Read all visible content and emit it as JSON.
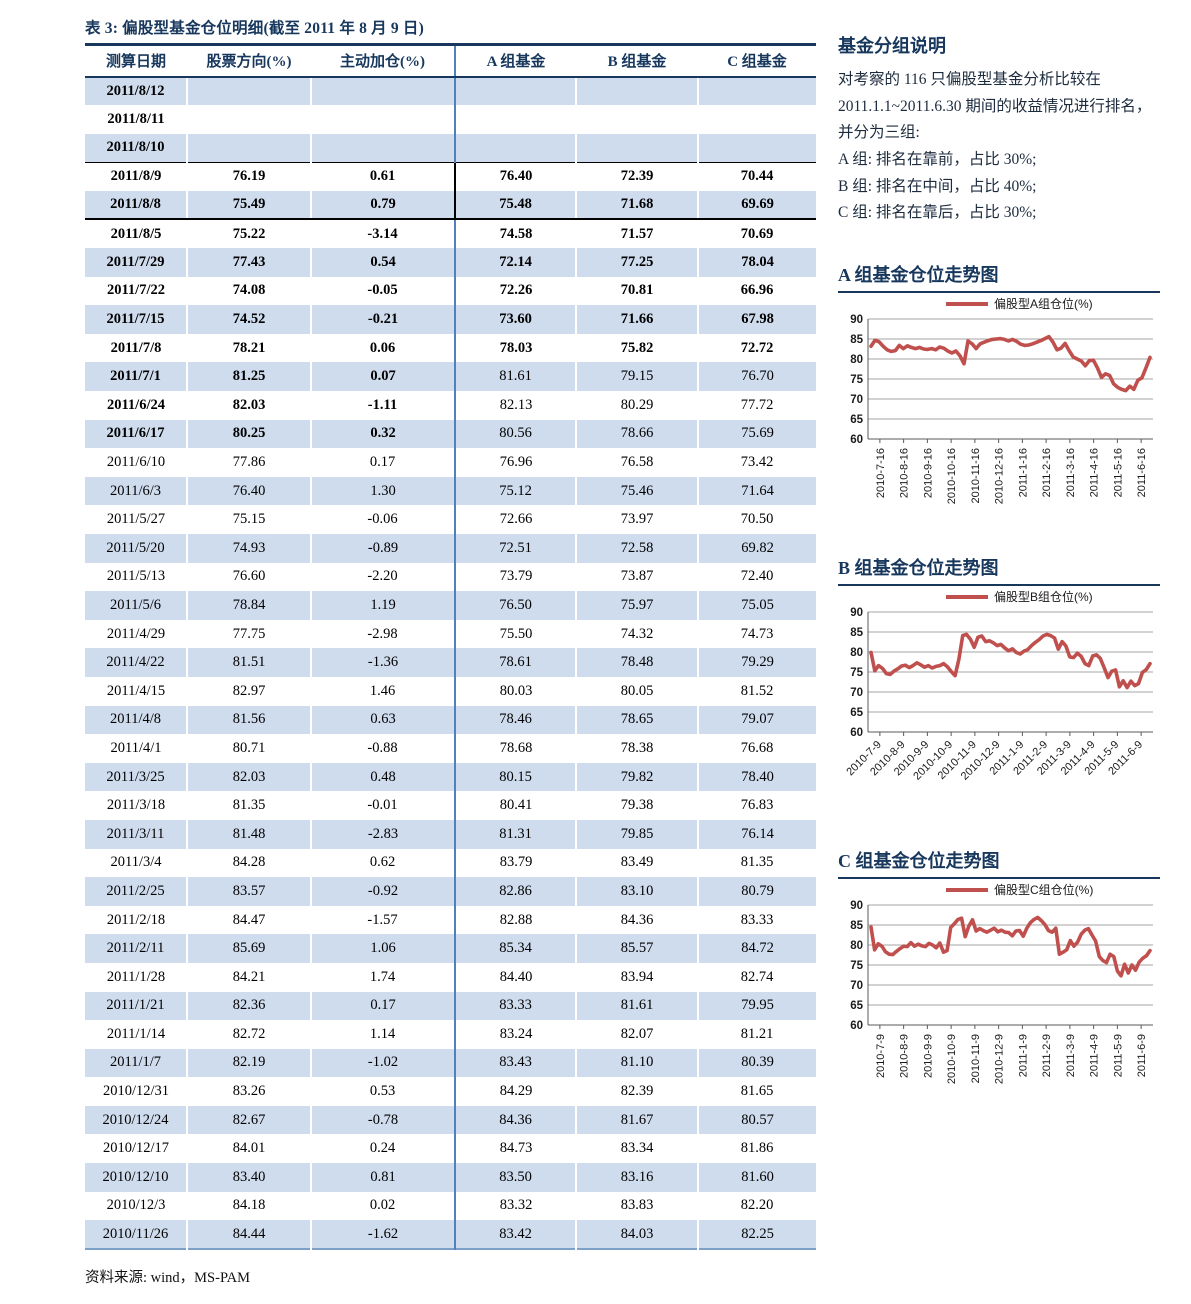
{
  "table": {
    "title": "表 3:  偏股型基金仓位明细(截至 2011 年 8 月 9 日)",
    "columns": [
      "测算日期",
      "股票方向(%)",
      "主动加仓(%)",
      "A 组基金",
      "B 组基金",
      "C 组基金"
    ],
    "rows": [
      {
        "date": "2011/8/12",
        "cells": [
          "",
          "",
          "",
          "",
          ""
        ],
        "bold": "full",
        "rule_above": false,
        "rule_below": false
      },
      {
        "date": "2011/8/11",
        "cells": [
          "",
          "",
          "",
          "",
          ""
        ],
        "bold": "full",
        "rule_above": false,
        "rule_below": false
      },
      {
        "date": "2011/8/10",
        "cells": [
          "",
          "",
          "",
          "",
          ""
        ],
        "bold": "full",
        "rule_above": false,
        "rule_below": false
      },
      {
        "date": "2011/8/9",
        "cells": [
          "76.19",
          "0.61",
          "76.40",
          "72.39",
          "70.44"
        ],
        "bold": "full",
        "rule_above": true,
        "rule_below": false
      },
      {
        "date": "2011/8/8",
        "cells": [
          "75.49",
          "0.79",
          "75.48",
          "71.68",
          "69.69"
        ],
        "bold": "full",
        "rule_above": false,
        "rule_below": true
      },
      {
        "date": "2011/8/5",
        "cells": [
          "75.22",
          "-3.14",
          "74.58",
          "71.57",
          "70.69"
        ],
        "bold": "full",
        "rule_above": false,
        "rule_below": false
      },
      {
        "date": "2011/7/29",
        "cells": [
          "77.43",
          "0.54",
          "72.14",
          "77.25",
          "78.04"
        ],
        "bold": "full",
        "rule_above": false,
        "rule_below": false
      },
      {
        "date": "2011/7/22",
        "cells": [
          "74.08",
          "-0.05",
          "72.26",
          "70.81",
          "66.96"
        ],
        "bold": "full",
        "rule_above": false,
        "rule_below": false
      },
      {
        "date": "2011/7/15",
        "cells": [
          "74.52",
          "-0.21",
          "73.60",
          "71.66",
          "67.98"
        ],
        "bold": "full",
        "rule_above": false,
        "rule_below": false
      },
      {
        "date": "2011/7/8",
        "cells": [
          "78.21",
          "0.06",
          "78.03",
          "75.82",
          "72.72"
        ],
        "bold": "full",
        "rule_above": false,
        "rule_below": false
      },
      {
        "date": "2011/7/1",
        "cells": [
          "81.25",
          "0.07",
          "81.61",
          "79.15",
          "76.70"
        ],
        "bold": "left",
        "rule_above": false,
        "rule_below": false
      },
      {
        "date": "2011/6/24",
        "cells": [
          "82.03",
          "-1.11",
          "82.13",
          "80.29",
          "77.72"
        ],
        "bold": "left",
        "rule_above": false,
        "rule_below": false
      },
      {
        "date": "2011/6/17",
        "cells": [
          "80.25",
          "0.32",
          "80.56",
          "78.66",
          "75.69"
        ],
        "bold": "left",
        "rule_above": false,
        "rule_below": false
      },
      {
        "date": "2011/6/10",
        "cells": [
          "77.86",
          "0.17",
          "76.96",
          "76.58",
          "73.42"
        ],
        "bold": "none",
        "rule_above": false,
        "rule_below": false
      },
      {
        "date": "2011/6/3",
        "cells": [
          "76.40",
          "1.30",
          "75.12",
          "75.46",
          "71.64"
        ],
        "bold": "none",
        "rule_above": false,
        "rule_below": false
      },
      {
        "date": "2011/5/27",
        "cells": [
          "75.15",
          "-0.06",
          "72.66",
          "73.97",
          "70.50"
        ],
        "bold": "none",
        "rule_above": false,
        "rule_below": false
      },
      {
        "date": "2011/5/20",
        "cells": [
          "74.93",
          "-0.89",
          "72.51",
          "72.58",
          "69.82"
        ],
        "bold": "none",
        "rule_above": false,
        "rule_below": false
      },
      {
        "date": "2011/5/13",
        "cells": [
          "76.60",
          "-2.20",
          "73.79",
          "73.87",
          "72.40"
        ],
        "bold": "none",
        "rule_above": false,
        "rule_below": false
      },
      {
        "date": "2011/5/6",
        "cells": [
          "78.84",
          "1.19",
          "76.50",
          "75.97",
          "75.05"
        ],
        "bold": "none",
        "rule_above": false,
        "rule_below": false
      },
      {
        "date": "2011/4/29",
        "cells": [
          "77.75",
          "-2.98",
          "75.50",
          "74.32",
          "74.73"
        ],
        "bold": "none",
        "rule_above": false,
        "rule_below": false
      },
      {
        "date": "2011/4/22",
        "cells": [
          "81.51",
          "-1.36",
          "78.61",
          "78.48",
          "79.29"
        ],
        "bold": "none",
        "rule_above": false,
        "rule_below": false
      },
      {
        "date": "2011/4/15",
        "cells": [
          "82.97",
          "1.46",
          "80.03",
          "80.05",
          "81.52"
        ],
        "bold": "none",
        "rule_above": false,
        "rule_below": false
      },
      {
        "date": "2011/4/8",
        "cells": [
          "81.56",
          "0.63",
          "78.46",
          "78.65",
          "79.07"
        ],
        "bold": "none",
        "rule_above": false,
        "rule_below": false
      },
      {
        "date": "2011/4/1",
        "cells": [
          "80.71",
          "-0.88",
          "78.68",
          "78.38",
          "76.68"
        ],
        "bold": "none",
        "rule_above": false,
        "rule_below": false
      },
      {
        "date": "2011/3/25",
        "cells": [
          "82.03",
          "0.48",
          "80.15",
          "79.82",
          "78.40"
        ],
        "bold": "none",
        "rule_above": false,
        "rule_below": false
      },
      {
        "date": "2011/3/18",
        "cells": [
          "81.35",
          "-0.01",
          "80.41",
          "79.38",
          "76.83"
        ],
        "bold": "none",
        "rule_above": false,
        "rule_below": false
      },
      {
        "date": "2011/3/11",
        "cells": [
          "81.48",
          "-2.83",
          "81.31",
          "79.85",
          "76.14"
        ],
        "bold": "none",
        "rule_above": false,
        "rule_below": false
      },
      {
        "date": "2011/3/4",
        "cells": [
          "84.28",
          "0.62",
          "83.79",
          "83.49",
          "81.35"
        ],
        "bold": "none",
        "rule_above": false,
        "rule_below": false
      },
      {
        "date": "2011/2/25",
        "cells": [
          "83.57",
          "-0.92",
          "82.86",
          "83.10",
          "80.79"
        ],
        "bold": "none",
        "rule_above": false,
        "rule_below": false
      },
      {
        "date": "2011/2/18",
        "cells": [
          "84.47",
          "-1.57",
          "82.88",
          "84.36",
          "83.33"
        ],
        "bold": "none",
        "rule_above": false,
        "rule_below": false
      },
      {
        "date": "2011/2/11",
        "cells": [
          "85.69",
          "1.06",
          "85.34",
          "85.57",
          "84.72"
        ],
        "bold": "none",
        "rule_above": false,
        "rule_below": false
      },
      {
        "date": "2011/1/28",
        "cells": [
          "84.21",
          "1.74",
          "84.40",
          "83.94",
          "82.74"
        ],
        "bold": "none",
        "rule_above": false,
        "rule_below": false
      },
      {
        "date": "2011/1/21",
        "cells": [
          "82.36",
          "0.17",
          "83.33",
          "81.61",
          "79.95"
        ],
        "bold": "none",
        "rule_above": false,
        "rule_below": false
      },
      {
        "date": "2011/1/14",
        "cells": [
          "82.72",
          "1.14",
          "83.24",
          "82.07",
          "81.21"
        ],
        "bold": "none",
        "rule_above": false,
        "rule_below": false
      },
      {
        "date": "2011/1/7",
        "cells": [
          "82.19",
          "-1.02",
          "83.43",
          "81.10",
          "80.39"
        ],
        "bold": "none",
        "rule_above": false,
        "rule_below": false
      },
      {
        "date": "2010/12/31",
        "cells": [
          "83.26",
          "0.53",
          "84.29",
          "82.39",
          "81.65"
        ],
        "bold": "none",
        "rule_above": false,
        "rule_below": false
      },
      {
        "date": "2010/12/24",
        "cells": [
          "82.67",
          "-0.78",
          "84.36",
          "81.67",
          "80.57"
        ],
        "bold": "none",
        "rule_above": false,
        "rule_below": false
      },
      {
        "date": "2010/12/17",
        "cells": [
          "84.01",
          "0.24",
          "84.73",
          "83.34",
          "81.86"
        ],
        "bold": "none",
        "rule_above": false,
        "rule_below": false
      },
      {
        "date": "2010/12/10",
        "cells": [
          "83.40",
          "0.81",
          "83.50",
          "83.16",
          "81.60"
        ],
        "bold": "none",
        "rule_above": false,
        "rule_below": false
      },
      {
        "date": "2010/12/3",
        "cells": [
          "84.18",
          "0.02",
          "83.32",
          "83.83",
          "82.20"
        ],
        "bold": "none",
        "rule_above": false,
        "rule_below": false
      },
      {
        "date": "2010/11/26",
        "cells": [
          "84.44",
          "-1.62",
          "83.42",
          "84.03",
          "82.25"
        ],
        "bold": "none",
        "rule_above": false,
        "rule_below": false
      }
    ],
    "source": "资料来源:  wind，MS-PAM"
  },
  "sidebar": {
    "note_title": "基金分组说明",
    "note_paragraph": "对考察的 116 只偏股型基金分析比较在 2011.1.1~2011.6.30 期间的收益情况进行排名，并分为三组:",
    "group_lines": [
      "A 组:  排名在靠前，占比 30%;",
      "B 组:  排名在中间，占比 40%;",
      "C 组:  排名在靠后，占比 30%;"
    ]
  },
  "colors": {
    "navy": "#17375d",
    "band": "#cfdcee",
    "divider_blue": "#4f81bd",
    "series_red": "#c0504d",
    "gridline": "#a6a6a6",
    "axis": "#595959"
  },
  "chart_data": [
    {
      "type": "line",
      "title": "A 组基金仓位走势图",
      "legend": "偏股型A组仓位(%)",
      "line_color": "#c0504d",
      "ylim": [
        60,
        90
      ],
      "yticks": [
        60,
        65,
        70,
        75,
        80,
        85,
        90
      ],
      "grid": true,
      "legend_position": "top",
      "xlabel_rotation": 90,
      "xtick_labels": [
        "2010-7-16",
        "2010-8-16",
        "2010-9-16",
        "2010-10-16",
        "2010-11-16",
        "2010-12-16",
        "2011-1-16",
        "2011-2-16",
        "2011-3-16",
        "2011-4-16",
        "2011-5-16",
        "2011-6-16"
      ],
      "values": [
        83.2,
        84.7,
        84.3,
        83.2,
        82.3,
        81.9,
        82.1,
        83.4,
        82.6,
        83.3,
        82.9,
        82.6,
        82.9,
        82.5,
        82.4,
        82.6,
        82.3,
        83.0,
        82.7,
        82.0,
        81.5,
        82.0,
        80.8,
        78.8,
        84.5,
        83.8,
        82.6,
        83.8,
        84.2,
        84.6,
        84.9,
        85.0,
        85.1,
        84.9,
        84.5,
        84.9,
        84.4,
        83.7,
        83.4,
        83.5,
        83.8,
        84.2,
        84.6,
        85.1,
        85.6,
        84.2,
        82.3,
        82.7,
        83.9,
        82.1,
        80.5,
        80.0,
        79.5,
        78.3,
        79.6,
        79.7,
        77.8,
        75.4,
        76.3,
        75.9,
        73.8,
        72.9,
        72.4,
        72.1,
        73.2,
        72.4,
        74.7,
        75.3,
        77.8,
        80.4
      ]
    },
    {
      "type": "line",
      "title": "B 组基金仓位走势图",
      "legend": "偏股型B组仓位(%)",
      "line_color": "#c0504d",
      "ylim": [
        60,
        90
      ],
      "yticks": [
        60,
        65,
        70,
        75,
        80,
        85,
        90
      ],
      "grid": true,
      "legend_position": "top",
      "xlabel_rotation": 45,
      "xtick_labels": [
        "2010-7-9",
        "2010-8-9",
        "2010-9-9",
        "2010-10-9",
        "2010-11-9",
        "2010-12-9",
        "2011-1-9",
        "2011-2-9",
        "2011-3-9",
        "2011-4-9",
        "2011-5-9",
        "2011-6-9"
      ],
      "values": [
        79.9,
        75.3,
        76.6,
        75.9,
        74.6,
        74.4,
        75.2,
        75.8,
        76.5,
        76.7,
        76.1,
        76.6,
        77.3,
        76.8,
        76.2,
        76.6,
        76.0,
        76.4,
        76.6,
        77.1,
        76.3,
        75.1,
        74.1,
        78.2,
        84.1,
        84.4,
        83.2,
        81.2,
        83.7,
        84.0,
        82.6,
        82.8,
        82.3,
        81.6,
        81.9,
        81.0,
        80.3,
        80.8,
        79.9,
        79.5,
        80.2,
        80.6,
        81.6,
        82.4,
        83.1,
        84.0,
        84.4,
        84.1,
        83.5,
        80.7,
        82.6,
        81.5,
        78.8,
        78.6,
        79.7,
        78.9,
        77.1,
        76.6,
        79.0,
        79.3,
        78.4,
        76.1,
        73.6,
        75.2,
        75.5,
        71.3,
        72.8,
        71.1,
        72.7,
        71.6,
        72.1,
        74.9,
        75.6,
        77.1
      ]
    },
    {
      "type": "line",
      "title": "C 组基金仓位走势图",
      "legend": "偏股型C组仓位(%)",
      "line_color": "#c0504d",
      "ylim": [
        60,
        90
      ],
      "yticks": [
        60,
        65,
        70,
        75,
        80,
        85,
        90
      ],
      "grid": true,
      "legend_position": "top",
      "xlabel_rotation": 90,
      "xtick_labels": [
        "2010-7-9",
        "2010-8-9",
        "2010-9-9",
        "2010-10-9",
        "2010-11-9",
        "2010-12-9",
        "2011-1-9",
        "2011-2-9",
        "2011-3-9",
        "2011-4-9",
        "2011-5-9",
        "2011-6-9"
      ],
      "values": [
        84.5,
        78.8,
        80.3,
        79.7,
        78.3,
        77.7,
        77.6,
        78.4,
        79.1,
        79.7,
        79.6,
        80.6,
        79.7,
        80.2,
        79.8,
        79.6,
        80.4,
        80.0,
        79.3,
        80.5,
        78.2,
        78.6,
        84.4,
        85.3,
        86.4,
        86.7,
        82.1,
        84.7,
        86.3,
        83.5,
        84.1,
        83.6,
        83.2,
        83.7,
        84.2,
        83.3,
        83.7,
        83.2,
        83.1,
        82.3,
        83.5,
        83.6,
        82.2,
        84.2,
        85.6,
        86.4,
        86.9,
        86.1,
        85.1,
        83.6,
        83.2,
        84.2,
        77.7,
        78.2,
        78.8,
        81.1,
        79.7,
        80.7,
        82.7,
        83.7,
        84.1,
        82.5,
        81.0,
        77.1,
        76.1,
        75.6,
        77.7,
        77.1,
        73.5,
        72.3,
        75.2,
        73.0,
        75.0,
        73.7,
        75.7,
        76.7,
        77.3,
        78.6
      ]
    }
  ]
}
